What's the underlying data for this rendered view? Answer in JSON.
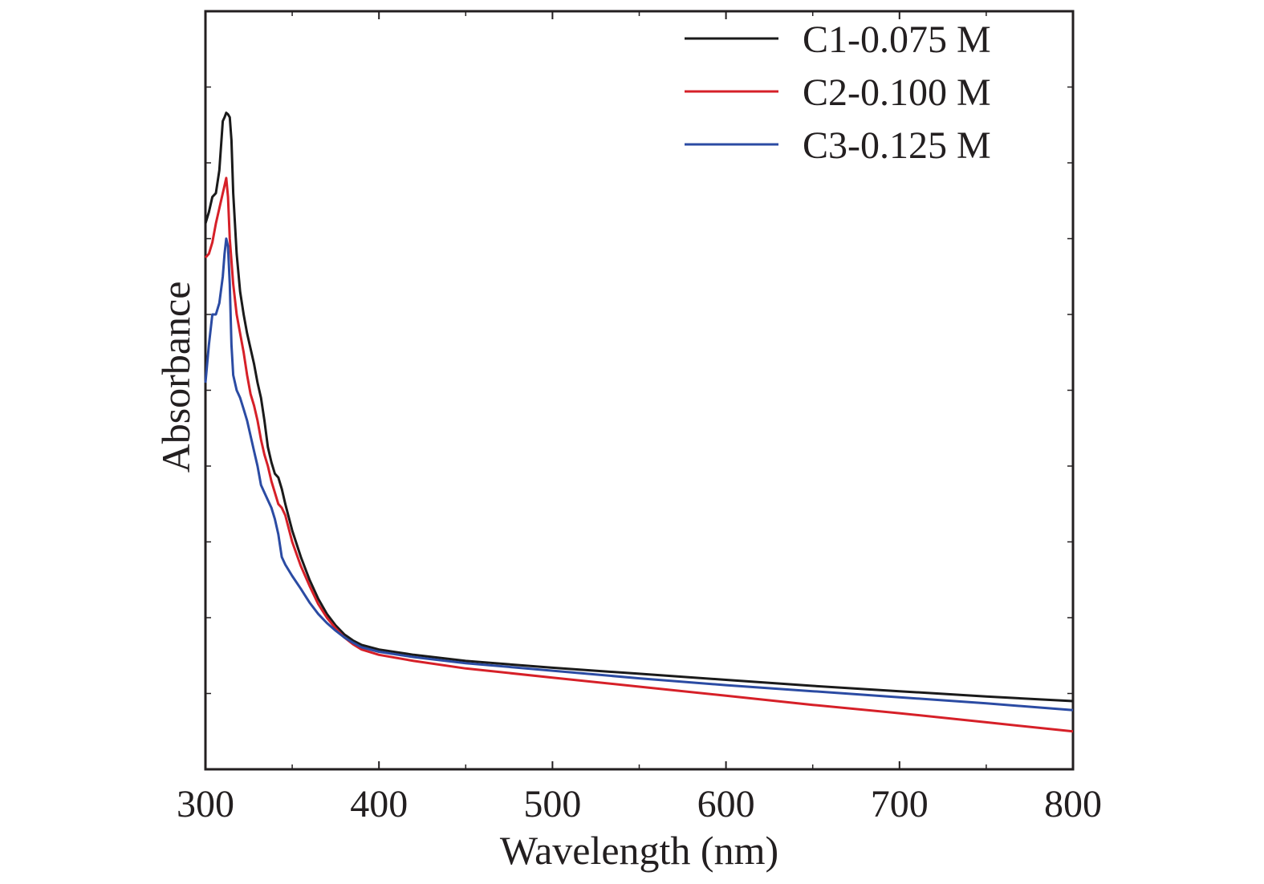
{
  "chart_data": {
    "type": "line",
    "xlabel": "Wavelength (nm)",
    "ylabel": "Absorbance",
    "xlim": [
      300,
      800
    ],
    "ylim": [
      0,
      1
    ],
    "x_ticks": [
      300,
      400,
      500,
      600,
      700,
      800
    ],
    "y_tick_labels": false,
    "grid": false,
    "legend_position": "top-right",
    "series": [
      {
        "name": "C1-0.075 M",
        "color": "#1a1a1a",
        "points": [
          [
            300,
            0.72
          ],
          [
            302,
            0.735
          ],
          [
            304,
            0.755
          ],
          [
            306,
            0.76
          ],
          [
            308,
            0.79
          ],
          [
            310,
            0.855
          ],
          [
            311,
            0.86
          ],
          [
            312,
            0.866
          ],
          [
            313,
            0.864
          ],
          [
            314,
            0.86
          ],
          [
            315,
            0.83
          ],
          [
            316,
            0.76
          ],
          [
            318,
            0.68
          ],
          [
            320,
            0.63
          ],
          [
            322,
            0.6
          ],
          [
            324,
            0.575
          ],
          [
            326,
            0.555
          ],
          [
            328,
            0.535
          ],
          [
            330,
            0.51
          ],
          [
            332,
            0.49
          ],
          [
            334,
            0.46
          ],
          [
            336,
            0.425
          ],
          [
            338,
            0.405
          ],
          [
            340,
            0.39
          ],
          [
            342,
            0.385
          ],
          [
            344,
            0.37
          ],
          [
            346,
            0.35
          ],
          [
            350,
            0.315
          ],
          [
            355,
            0.28
          ],
          [
            360,
            0.25
          ],
          [
            365,
            0.225
          ],
          [
            370,
            0.205
          ],
          [
            375,
            0.19
          ],
          [
            380,
            0.178
          ],
          [
            385,
            0.17
          ],
          [
            390,
            0.164
          ],
          [
            400,
            0.158
          ],
          [
            420,
            0.151
          ],
          [
            450,
            0.143
          ],
          [
            500,
            0.134
          ],
          [
            550,
            0.126
          ],
          [
            600,
            0.118
          ],
          [
            650,
            0.11
          ],
          [
            700,
            0.103
          ],
          [
            750,
            0.096
          ],
          [
            800,
            0.09
          ]
        ]
      },
      {
        "name": "C2-0.100 M",
        "color": "#d62028",
        "points": [
          [
            300,
            0.675
          ],
          [
            302,
            0.68
          ],
          [
            304,
            0.695
          ],
          [
            306,
            0.72
          ],
          [
            308,
            0.74
          ],
          [
            310,
            0.76
          ],
          [
            311,
            0.77
          ],
          [
            312,
            0.78
          ],
          [
            313,
            0.755
          ],
          [
            314,
            0.7
          ],
          [
            316,
            0.64
          ],
          [
            318,
            0.6
          ],
          [
            320,
            0.575
          ],
          [
            322,
            0.55
          ],
          [
            324,
            0.52
          ],
          [
            326,
            0.495
          ],
          [
            328,
            0.48
          ],
          [
            330,
            0.46
          ],
          [
            332,
            0.435
          ],
          [
            334,
            0.415
          ],
          [
            336,
            0.4
          ],
          [
            338,
            0.38
          ],
          [
            340,
            0.365
          ],
          [
            342,
            0.35
          ],
          [
            344,
            0.345
          ],
          [
            346,
            0.335
          ],
          [
            350,
            0.3
          ],
          [
            355,
            0.268
          ],
          [
            360,
            0.242
          ],
          [
            365,
            0.218
          ],
          [
            370,
            0.2
          ],
          [
            375,
            0.186
          ],
          [
            380,
            0.174
          ],
          [
            385,
            0.165
          ],
          [
            390,
            0.158
          ],
          [
            400,
            0.151
          ],
          [
            420,
            0.143
          ],
          [
            450,
            0.133
          ],
          [
            500,
            0.121
          ],
          [
            550,
            0.109
          ],
          [
            600,
            0.097
          ],
          [
            650,
            0.085
          ],
          [
            700,
            0.074
          ],
          [
            750,
            0.062
          ],
          [
            800,
            0.05
          ]
        ]
      },
      {
        "name": "C3-0.125 M",
        "color": "#2b4ba3",
        "points": [
          [
            300,
            0.51
          ],
          [
            302,
            0.56
          ],
          [
            304,
            0.6
          ],
          [
            306,
            0.6
          ],
          [
            308,
            0.615
          ],
          [
            310,
            0.65
          ],
          [
            311,
            0.68
          ],
          [
            312,
            0.7
          ],
          [
            313,
            0.69
          ],
          [
            314,
            0.64
          ],
          [
            315,
            0.56
          ],
          [
            316,
            0.52
          ],
          [
            318,
            0.5
          ],
          [
            320,
            0.49
          ],
          [
            322,
            0.475
          ],
          [
            324,
            0.46
          ],
          [
            326,
            0.44
          ],
          [
            328,
            0.42
          ],
          [
            330,
            0.4
          ],
          [
            332,
            0.375
          ],
          [
            334,
            0.365
          ],
          [
            336,
            0.355
          ],
          [
            338,
            0.345
          ],
          [
            340,
            0.33
          ],
          [
            342,
            0.31
          ],
          [
            344,
            0.28
          ],
          [
            346,
            0.27
          ],
          [
            350,
            0.255
          ],
          [
            355,
            0.238
          ],
          [
            360,
            0.22
          ],
          [
            365,
            0.205
          ],
          [
            370,
            0.193
          ],
          [
            375,
            0.183
          ],
          [
            380,
            0.174
          ],
          [
            385,
            0.167
          ],
          [
            390,
            0.161
          ],
          [
            400,
            0.155
          ],
          [
            420,
            0.148
          ],
          [
            450,
            0.14
          ],
          [
            500,
            0.13
          ],
          [
            550,
            0.12
          ],
          [
            600,
            0.111
          ],
          [
            650,
            0.103
          ],
          [
            700,
            0.095
          ],
          [
            750,
            0.087
          ],
          [
            800,
            0.078
          ]
        ]
      }
    ]
  }
}
